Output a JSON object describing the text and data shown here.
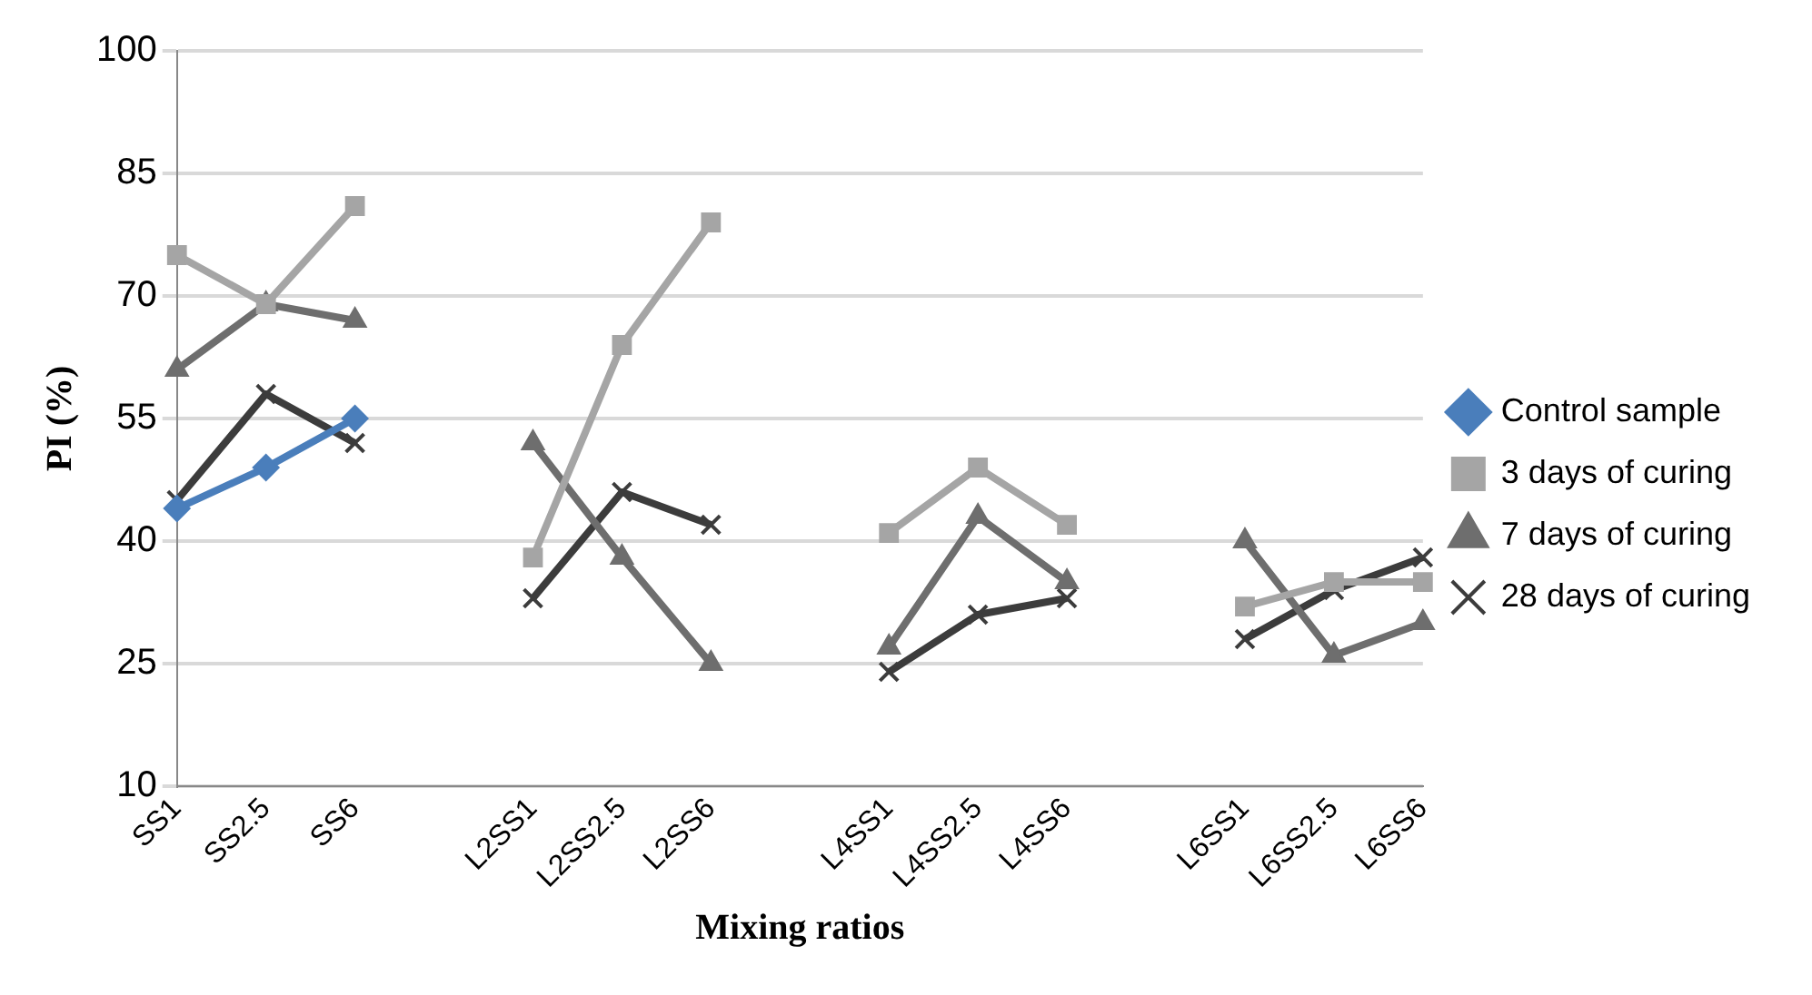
{
  "chart_data": {
    "type": "line",
    "xlabel": "Mixing ratios",
    "ylabel": "PI (%)",
    "categories": [
      "SS1",
      "SS2.5",
      "SS6",
      null,
      "L2SS1",
      "L2SS2.5",
      "L2SS6",
      null,
      "L4SS1",
      "L4SS2.5",
      "L4SS6",
      null,
      "L6SS1",
      "L6SS2.5",
      "L6SS6"
    ],
    "series": [
      {
        "name": "Control sample",
        "color": "#4a7ebb",
        "marker": "diamond",
        "values": [
          44,
          49,
          55,
          null,
          null,
          null,
          null,
          null,
          null,
          null,
          null,
          null,
          null,
          null,
          null
        ]
      },
      {
        "name": "3 days of curing",
        "color": "#a5a5a5",
        "marker": "square",
        "values": [
          75,
          69,
          81,
          null,
          38,
          64,
          79,
          null,
          41,
          49,
          42,
          null,
          32,
          35,
          35
        ]
      },
      {
        "name": "7 days of curing",
        "color": "#6e6e6e",
        "marker": "triangle",
        "values": [
          61,
          69,
          67,
          null,
          52,
          38,
          25,
          null,
          27,
          43,
          35,
          null,
          40,
          26,
          30
        ]
      },
      {
        "name": "28 days of curing",
        "color": "#3c3c3c",
        "marker": "cross",
        "values": [
          45,
          58,
          52,
          null,
          33,
          46,
          42,
          null,
          24,
          31,
          33,
          null,
          28,
          34,
          38
        ]
      }
    ],
    "ylim": [
      10,
      100
    ],
    "yticks": [
      10,
      25,
      40,
      55,
      70,
      85,
      100
    ],
    "grid": "y",
    "legend": "right"
  }
}
